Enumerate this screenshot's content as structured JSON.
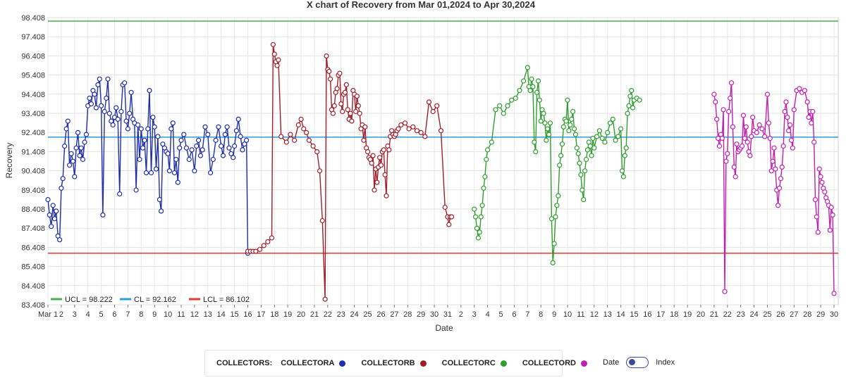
{
  "chart_data": {
    "type": "line",
    "title": "X chart of Recovery from Mar 01,2024 to Apr 30,2024",
    "xlabel": "Date",
    "ylabel": "Recovery",
    "ylim": [
      83.408,
      98.408
    ],
    "yticks": [
      "98.408",
      "97.408",
      "96.408",
      "95.408",
      "94.408",
      "93.408",
      "92.408",
      "91.408",
      "90.408",
      "89.408",
      "88.408",
      "87.408",
      "86.408",
      "85.408",
      "84.408",
      "83.408"
    ],
    "xticks": [
      "Mar 1",
      "2",
      "3",
      "4",
      "5",
      "6",
      "7",
      "8",
      "9",
      "10",
      "11",
      "12",
      "13",
      "14",
      "15",
      "16",
      "17",
      "18",
      "19",
      "20",
      "21",
      "22",
      "23",
      "24",
      "25",
      "26",
      "27",
      "28",
      "29",
      "30",
      "31",
      "2",
      "3",
      "4",
      "5",
      "6",
      "7",
      "8",
      "9",
      "10",
      "11",
      "12",
      "13",
      "14",
      "15",
      "16",
      "17",
      "18",
      "19",
      "20",
      "21",
      "22",
      "23",
      "24",
      "25",
      "26",
      "27",
      "28",
      "29",
      "30"
    ],
    "grid": true,
    "control_limits": [
      {
        "label": "UCL = 98.222",
        "value": 98.222,
        "color": "#4caf50"
      },
      {
        "label": "CL = 92.162",
        "value": 92.162,
        "color": "#2f9be0"
      },
      {
        "label": "LCL = 86.102",
        "value": 86.102,
        "color": "#e53935"
      }
    ],
    "series": [
      {
        "name": "COLLECTORA",
        "color": "#1f2fa8",
        "x": [
          1,
          1.12,
          1.25,
          1.38,
          1.5,
          1.62,
          1.75,
          1.88,
          2.0,
          2.12,
          2.25,
          2.38,
          2.5,
          2.62,
          2.75,
          2.88,
          3.0,
          3.12,
          3.25,
          3.38,
          3.5,
          3.62,
          3.75,
          3.88,
          4.0,
          4.12,
          4.25,
          4.38,
          4.5,
          4.62,
          4.75,
          4.88,
          5.0,
          5.12,
          5.25,
          5.38,
          5.5,
          5.62,
          5.75,
          5.88,
          6.0,
          6.12,
          6.25,
          6.38,
          6.5,
          6.62,
          6.75,
          6.88,
          7.0,
          7.12,
          7.25,
          7.38,
          7.5,
          7.62,
          7.75,
          7.88,
          8.0,
          8.12,
          8.25,
          8.38,
          8.5,
          8.62,
          8.75,
          8.88,
          9.0,
          9.12,
          9.25,
          9.38,
          9.5,
          9.62,
          9.75,
          9.88,
          10.0,
          10.12,
          10.25,
          10.38,
          10.5,
          10.62,
          10.75,
          10.88,
          11.0,
          11.2,
          11.4,
          11.6,
          11.8,
          12.0,
          12.15,
          12.3,
          12.45,
          12.6,
          12.8,
          13.0,
          13.2,
          13.4,
          13.6,
          13.8,
          14.0,
          14.15,
          14.3,
          14.45,
          14.6,
          14.75,
          14.9,
          15.0,
          15.15,
          15.3,
          15.45,
          15.6,
          15.75,
          15.9,
          16.0
        ],
        "values": [
          88.9,
          88.1,
          87.5,
          88.6,
          87.9,
          88.3,
          87.0,
          86.8,
          89.5,
          90.0,
          91.7,
          92.6,
          93.0,
          90.7,
          91.3,
          90.9,
          90.1,
          91.6,
          92.4,
          91.2,
          91.6,
          91.0,
          91.9,
          92.3,
          93.8,
          94.2,
          93.9,
          94.6,
          94.4,
          93.7,
          94.9,
          95.2,
          93.8,
          88.1,
          93.5,
          94.2,
          95.2,
          93.4,
          93.0,
          92.8,
          93.2,
          93.7,
          93.1,
          89.2,
          93.5,
          94.9,
          95.0,
          93.0,
          92.6,
          93.4,
          94.5,
          93.1,
          92.9,
          89.4,
          92.8,
          91.0,
          92.6,
          91.6,
          92.0,
          90.3,
          92.6,
          94.6,
          90.3,
          93.2,
          92.7,
          90.5,
          92.2,
          88.9,
          88.3,
          91.8,
          91.6,
          91.4,
          91.3,
          90.4,
          92.6,
          92.9,
          90.3,
          91.0,
          89.8,
          91.6,
          92.0,
          92.3,
          91.6,
          91.0,
          91.5,
          90.4,
          91.7,
          92.0,
          91.2,
          91.5,
          92.7,
          92.3,
          90.3,
          91.0,
          92.0,
          92.7,
          91.7,
          91.2,
          92.3,
          92.7,
          91.6,
          91.3,
          91.1,
          91.7,
          92.5,
          93.1,
          92.2,
          91.5,
          91.8,
          92.0,
          86.1
        ]
      },
      {
        "name": "COLLECTORB",
        "color": "#a01e2a",
        "x": [
          16.0,
          16.2,
          16.4,
          16.6,
          16.9,
          17.2,
          17.5,
          17.8,
          17.9,
          18.0,
          18.1,
          18.2,
          18.3,
          18.5,
          18.9,
          19.2,
          19.5,
          19.8,
          20.0,
          20.2,
          20.4,
          20.6,
          20.9,
          21.2,
          21.4,
          21.6,
          21.8,
          21.9,
          22.0,
          22.1,
          22.2,
          22.3,
          22.4,
          22.5,
          22.6,
          22.7,
          22.8,
          22.9,
          23.0,
          23.1,
          23.2,
          23.3,
          23.4,
          23.5,
          23.6,
          23.7,
          23.8,
          23.9,
          24.0,
          24.1,
          24.2,
          24.3,
          24.4,
          24.5,
          24.6,
          24.7,
          24.8,
          24.9,
          25.0,
          25.1,
          25.2,
          25.3,
          25.4,
          25.5,
          25.6,
          25.7,
          25.8,
          25.9,
          26.0,
          26.1,
          26.2,
          26.3,
          26.4,
          26.5,
          26.6,
          26.7,
          26.8,
          26.9,
          27.0,
          27.1,
          27.2,
          27.3,
          27.5,
          27.8,
          28.1,
          28.4,
          28.7,
          29.0,
          29.3,
          29.6,
          29.9,
          30.2,
          30.5,
          30.8,
          31.0,
          31.1,
          31.2,
          31.3
        ],
        "values": [
          86.2,
          86.2,
          86.2,
          86.2,
          86.3,
          86.5,
          86.7,
          86.9,
          97.0,
          96.5,
          96.1,
          95.9,
          96.2,
          92.2,
          91.9,
          92.3,
          92.0,
          92.8,
          93.1,
          92.6,
          92.4,
          92.0,
          91.7,
          91.4,
          90.4,
          87.8,
          83.7,
          96.4,
          95.7,
          95.6,
          95.2,
          93.6,
          93.4,
          93.8,
          94.5,
          94.7,
          95.4,
          95.5,
          93.9,
          93.5,
          94.4,
          94.5,
          94.9,
          93.6,
          93.1,
          93.4,
          93.0,
          94.6,
          94.4,
          93.5,
          94.3,
          93.8,
          93.4,
          92.6,
          92.8,
          92.0,
          92.7,
          91.6,
          91.4,
          91.1,
          91.0,
          90.8,
          91.2,
          89.4,
          90.5,
          89.8,
          90.6,
          91.1,
          90.7,
          91.4,
          91.5,
          90.2,
          89.1,
          91.7,
          91.5,
          92.2,
          92.5,
          92.3,
          92.2,
          92.3,
          92.5,
          92.6,
          92.8,
          92.9,
          92.6,
          92.7,
          92.5,
          92.4,
          92.2,
          94.0,
          93.5,
          93.8,
          92.5,
          88.5,
          88.0,
          87.6,
          88.0,
          88.0
        ]
      },
      {
        "name": "COLLECTORC",
        "color": "#2f9e2f",
        "x": [
          33.0,
          33.1,
          33.2,
          33.3,
          33.4,
          33.5,
          33.6,
          33.7,
          33.8,
          33.9,
          34.0,
          34.3,
          34.6,
          34.9,
          35.2,
          35.5,
          35.8,
          36.1,
          36.4,
          36.7,
          37.0,
          37.1,
          37.2,
          37.3,
          37.4,
          37.5,
          37.6,
          37.7,
          37.8,
          37.9,
          38.0,
          38.1,
          38.2,
          38.3,
          38.4,
          38.5,
          38.6,
          38.7,
          38.8,
          38.9,
          39.0,
          39.1,
          39.2,
          39.3,
          39.4,
          39.5,
          39.6,
          39.7,
          39.8,
          39.9,
          40.0,
          40.1,
          40.2,
          40.3,
          40.4,
          40.5,
          40.6,
          40.7,
          40.8,
          40.9,
          41.0,
          41.1,
          41.2,
          41.3,
          41.4,
          41.5,
          41.6,
          41.7,
          41.8,
          41.9,
          42.0,
          42.2,
          42.4,
          42.6,
          42.8,
          43.0,
          43.2,
          43.4,
          43.6,
          43.8,
          44.0,
          44.1,
          44.2,
          44.3,
          44.4,
          44.5,
          44.6,
          44.7,
          44.8,
          44.9,
          45.0,
          45.2,
          45.4
        ],
        "values": [
          88.4,
          88.0,
          87.4,
          86.9,
          87.2,
          88.0,
          88.6,
          89.5,
          90.1,
          91.0,
          91.5,
          91.9,
          93.6,
          93.8,
          93.4,
          93.8,
          94.1,
          94.2,
          94.6,
          95.1,
          95.8,
          94.8,
          94.6,
          95.2,
          94.8,
          91.9,
          91.4,
          94.5,
          95.1,
          94.1,
          93.0,
          93.6,
          93.4,
          92.9,
          92.0,
          92.6,
          92.3,
          92.9,
          87.9,
          85.6,
          86.6,
          88.0,
          88.6,
          89.1,
          90.7,
          91.2,
          91.8,
          92.7,
          93.1,
          93.0,
          94.1,
          92.5,
          92.8,
          93.1,
          93.5,
          92.6,
          92.3,
          91.6,
          91.3,
          90.8,
          90.2,
          89.4,
          88.9,
          90.4,
          91.0,
          91.5,
          91.9,
          91.7,
          91.2,
          92.1,
          91.6,
          92.2,
          92.5,
          92.1,
          91.9,
          92.4,
          92.9,
          93.1,
          92.0,
          92.2,
          92.6,
          90.4,
          90.1,
          91.2,
          91.6,
          93.4,
          93.8,
          94.3,
          94.6,
          93.7,
          94.1,
          94.2,
          94.1
        ]
      },
      {
        "name": "COLLECTORD",
        "color": "#c020b0",
        "x": [
          51.0,
          51.1,
          51.2,
          51.3,
          51.4,
          51.5,
          51.6,
          51.7,
          51.8,
          51.9,
          52.0,
          52.1,
          52.2,
          52.3,
          52.4,
          52.5,
          52.6,
          52.7,
          52.8,
          52.9,
          53.0,
          53.1,
          53.2,
          53.3,
          53.4,
          53.5,
          53.6,
          53.7,
          53.8,
          53.9,
          54.0,
          54.2,
          54.4,
          54.6,
          54.8,
          55.0,
          55.1,
          55.2,
          55.3,
          55.4,
          55.5,
          55.6,
          55.7,
          55.8,
          55.9,
          56.0,
          56.1,
          56.2,
          56.3,
          56.4,
          56.5,
          56.6,
          56.7,
          56.8,
          56.9,
          57.0,
          57.2,
          57.4,
          57.6,
          57.8,
          58.0,
          58.1,
          58.2,
          58.3,
          58.4,
          58.5,
          58.6,
          58.7,
          58.8,
          58.9,
          59.0,
          59.1,
          59.2,
          59.3,
          59.4,
          59.5,
          59.6,
          59.7,
          59.8,
          59.9,
          60.0
        ],
        "values": [
          94.4,
          94.0,
          93.1,
          92.1,
          91.7,
          92.3,
          92.1,
          93.6,
          84.1,
          90.9,
          91.3,
          93.5,
          94.2,
          95.0,
          92.7,
          90.6,
          90.1,
          91.8,
          91.4,
          91.5,
          91.6,
          91.7,
          93.3,
          92.1,
          92.7,
          91.9,
          91.4,
          91.2,
          92.2,
          93.2,
          92.5,
          92.4,
          92.8,
          92.6,
          92.2,
          94.4,
          92.9,
          92.1,
          90.4,
          90.9,
          91.6,
          90.5,
          89.4,
          88.6,
          89.5,
          90.0,
          90.6,
          91.7,
          93.5,
          94.0,
          93.2,
          92.5,
          92.8,
          92.0,
          91.6,
          93.6,
          94.6,
          94.7,
          94.5,
          94.6,
          94.0,
          93.2,
          93.5,
          92.9,
          93.5,
          91.9,
          88.9,
          88.0,
          87.2,
          90.5,
          90.1,
          89.8,
          89.5,
          89.3,
          89.0,
          88.8,
          88.6,
          87.3,
          88.5,
          88.1,
          84.0
        ]
      }
    ]
  },
  "legend": {
    "header": "COLLECTORS:",
    "items": [
      {
        "label": "COLLECTORA",
        "color": "#1f2fa8"
      },
      {
        "label": "COLLECTORB",
        "color": "#a01e2a"
      },
      {
        "label": "COLLECTORC",
        "color": "#2f9e2f"
      },
      {
        "label": "COLLECTORD",
        "color": "#c020b0"
      }
    ]
  },
  "toggle": {
    "left_label": "Date",
    "right_label": "Index",
    "selected": "Date"
  }
}
